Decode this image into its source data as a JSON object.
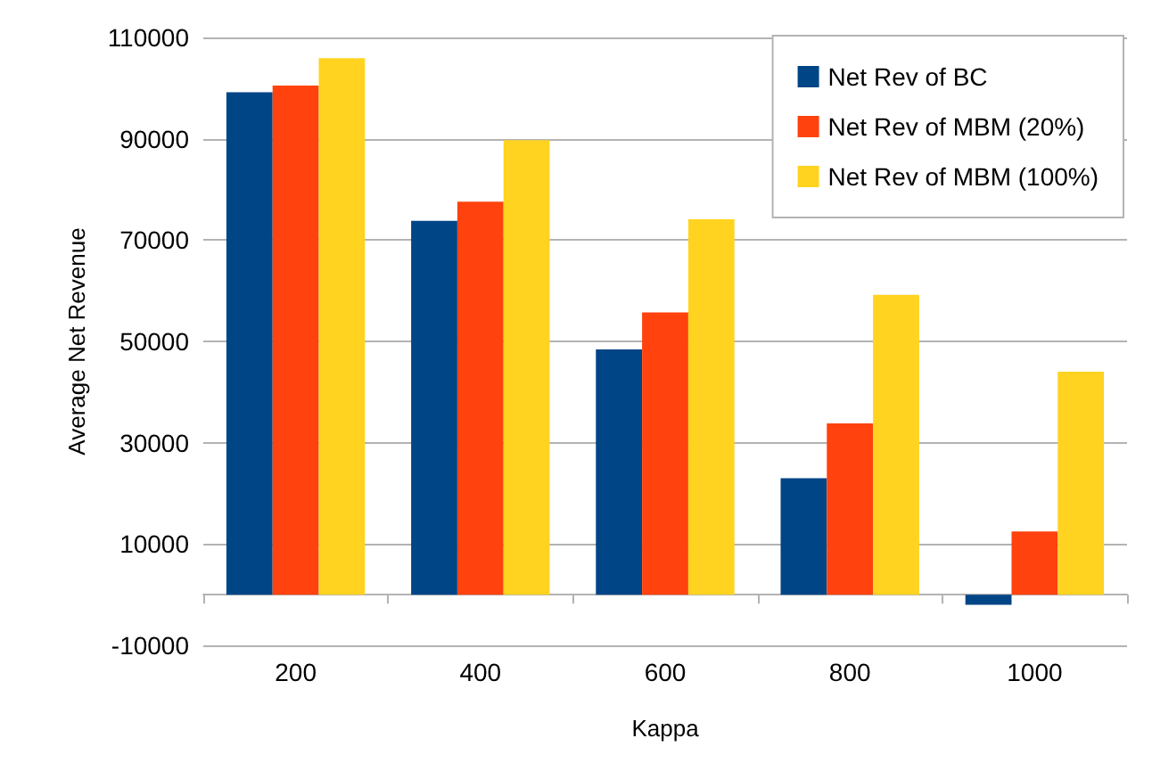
{
  "chart_data": {
    "type": "bar",
    "xlabel": "Kappa",
    "ylabel": "Average Net Revenue",
    "categories": [
      "200",
      "400",
      "600",
      "800",
      "1000"
    ],
    "series": [
      {
        "name": "Net Rev of BC",
        "color": "#004586",
        "values": [
          99200,
          73800,
          48400,
          23000,
          -2000
        ]
      },
      {
        "name": "Net Rev of MBM (20%)",
        "color": "#ff420e",
        "values": [
          100500,
          77600,
          55700,
          33800,
          12500
        ]
      },
      {
        "name": "Net Rev of MBM (100%)",
        "color": "#ffd320",
        "values": [
          105900,
          89700,
          74100,
          59200,
          44000
        ]
      }
    ],
    "ylim": [
      -10000,
      110000
    ],
    "yticks": [
      -10000,
      10000,
      30000,
      50000,
      70000,
      90000,
      110000
    ],
    "grid": "y",
    "legend": "top right"
  }
}
